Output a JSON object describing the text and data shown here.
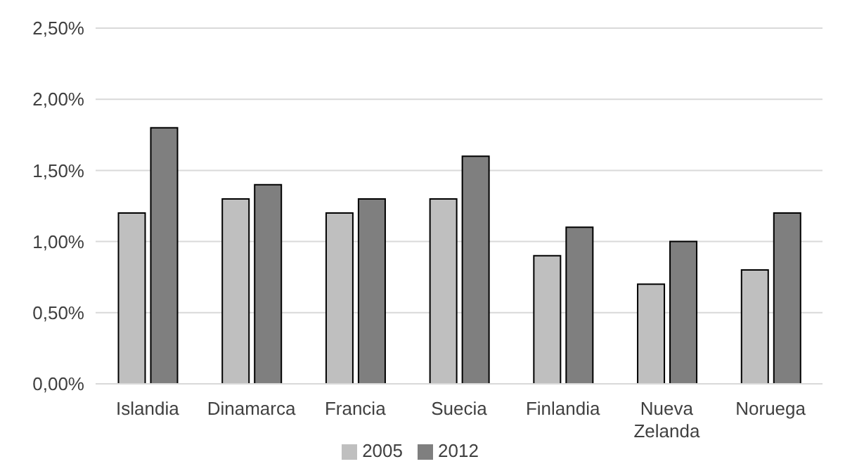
{
  "chart_data": {
    "type": "bar",
    "categories": [
      "Islandia",
      "Dinamarca",
      "Francia",
      "Suecia",
      "Finlandia",
      "Nueva Zelanda",
      "Noruega"
    ],
    "series": [
      {
        "name": "2005",
        "color": "#bfbfbf",
        "values": [
          1.2,
          1.3,
          1.2,
          1.3,
          0.9,
          0.7,
          0.8
        ]
      },
      {
        "name": "2012",
        "color": "#7f7f7f",
        "values": [
          1.8,
          1.4,
          1.3,
          1.6,
          1.1,
          1.0,
          1.2
        ]
      }
    ],
    "ylim": [
      0,
      2.5
    ],
    "yticks": [
      {
        "value": 0,
        "label": "0,00%"
      },
      {
        "value": 0.5,
        "label": "0,50%"
      },
      {
        "value": 1,
        "label": "1,00%"
      },
      {
        "value": 1.5,
        "label": "1,50%"
      },
      {
        "value": 2,
        "label": "2,00%"
      },
      {
        "value": 2.5,
        "label": "2,50%"
      }
    ],
    "grid": "y",
    "legend": "bottom"
  }
}
